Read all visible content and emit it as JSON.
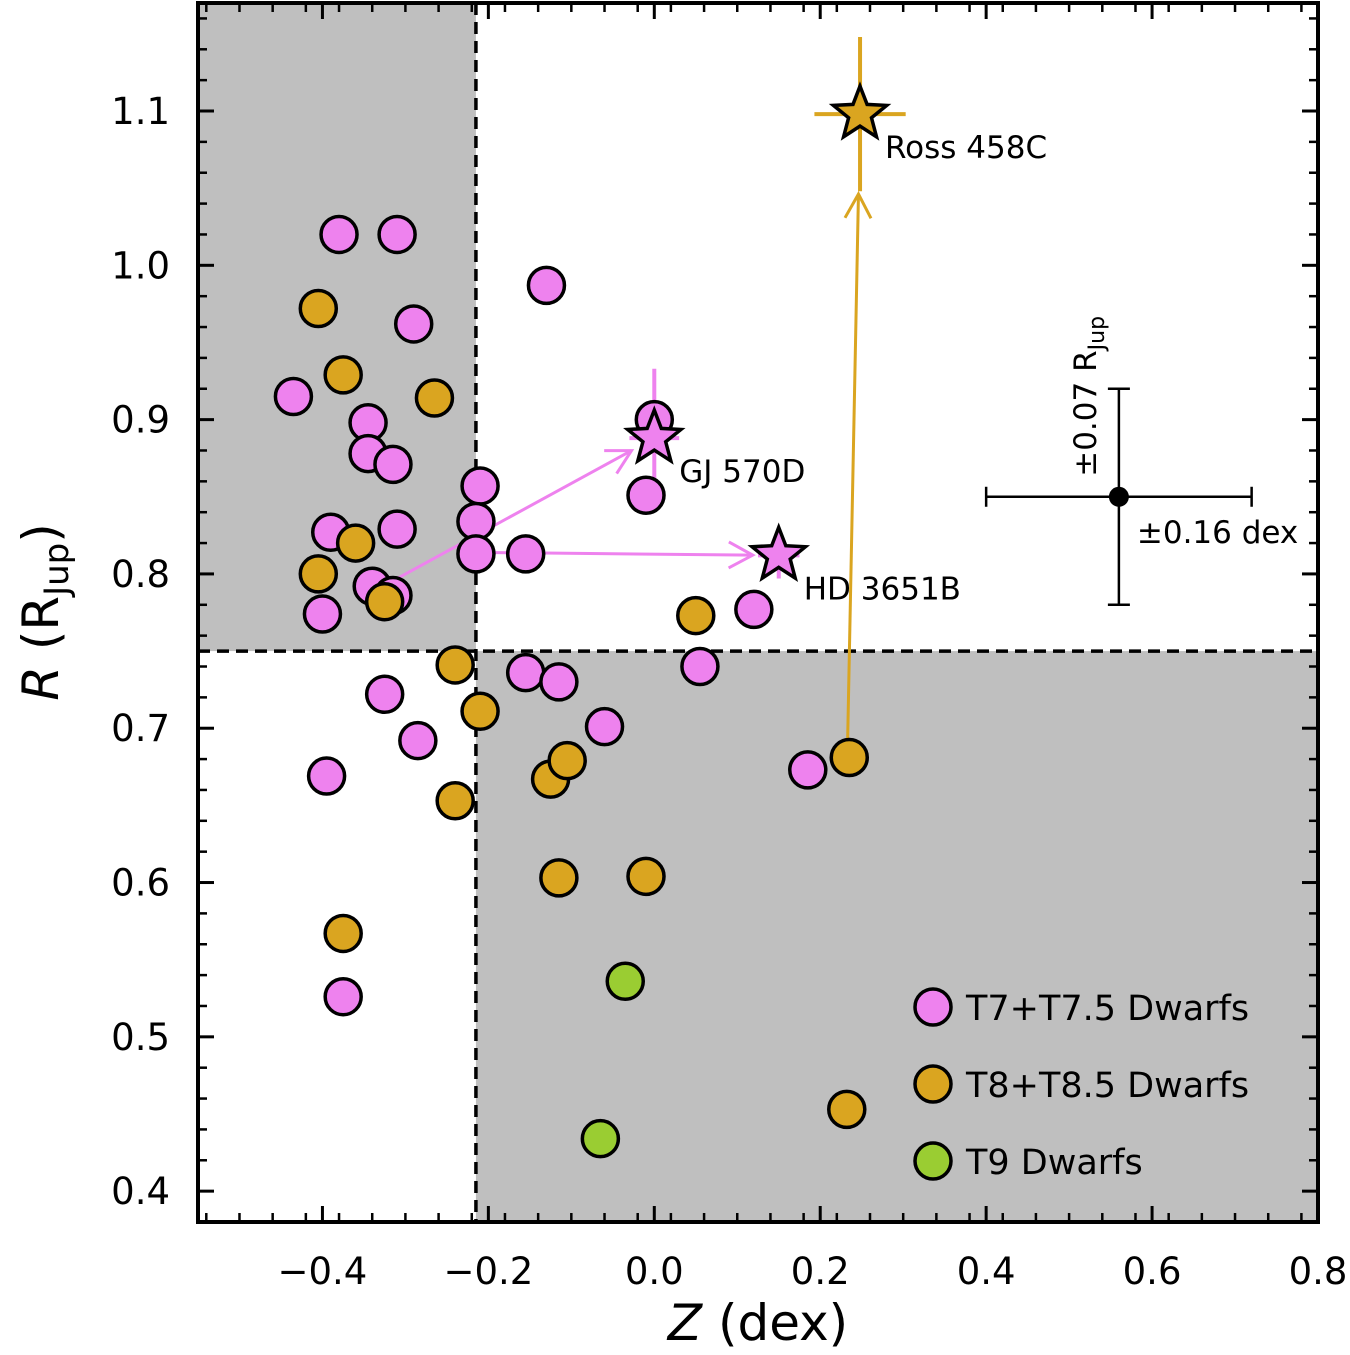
{
  "colors": {
    "t7": "#ee82ee",
    "t8": "#daa520",
    "t9": "#9acd32",
    "shade": "#bfbfbf"
  },
  "chart_data": {
    "type": "scatter",
    "xlabel": "Z (dex)",
    "ylabel": "R (RJup)",
    "xlabel_parts": {
      "var": "Z",
      "unit": "(dex)"
    },
    "ylabel_parts": {
      "var": "R",
      "open": "(R",
      "sub": "Jup",
      "close": ")"
    },
    "xlim": [
      -0.55,
      0.8
    ],
    "ylim": [
      0.38,
      1.17
    ],
    "xticks": [
      -0.4,
      -0.2,
      0.0,
      0.2,
      0.4,
      0.6,
      0.8
    ],
    "xtick_labels": [
      "−0.4",
      "−0.2",
      "0.0",
      "0.2",
      "0.4",
      "0.6",
      "0.8"
    ],
    "yticks": [
      0.4,
      0.5,
      0.6,
      0.7,
      0.8,
      0.9,
      1.0,
      1.1
    ],
    "ytick_labels": [
      "0.4",
      "0.5",
      "0.6",
      "0.7",
      "0.8",
      "0.9",
      "1.0",
      "1.1"
    ],
    "threshold_x": -0.215,
    "threshold_y": 0.75,
    "series": [
      {
        "name": "T7+T7.5 Dwarfs",
        "color_key": "t7",
        "points": [
          [
            -0.38,
            1.02
          ],
          [
            -0.31,
            1.02
          ],
          [
            -0.13,
            0.987
          ],
          [
            -0.29,
            0.962
          ],
          [
            -0.435,
            0.915
          ],
          [
            -0.345,
            0.898
          ],
          [
            -0.345,
            0.878
          ],
          [
            -0.315,
            0.871
          ],
          [
            -0.21,
            0.857
          ],
          [
            -0.215,
            0.834
          ],
          [
            -0.39,
            0.827
          ],
          [
            -0.31,
            0.829
          ],
          [
            -0.215,
            0.813
          ],
          [
            -0.155,
            0.813
          ],
          [
            -0.34,
            0.792
          ],
          [
            -0.315,
            0.786
          ],
          [
            -0.4,
            0.774
          ],
          [
            -0.325,
            0.722
          ],
          [
            -0.285,
            0.692
          ],
          [
            -0.155,
            0.736
          ],
          [
            -0.115,
            0.73
          ],
          [
            -0.06,
            0.701
          ],
          [
            -0.395,
            0.669
          ],
          [
            -0.375,
            0.526
          ],
          [
            0.0,
            0.9
          ],
          [
            -0.01,
            0.851
          ],
          [
            0.12,
            0.777
          ],
          [
            0.055,
            0.74
          ],
          [
            0.185,
            0.673
          ]
        ]
      },
      {
        "name": "T8+T8.5 Dwarfs",
        "color_key": "t8",
        "points": [
          [
            -0.405,
            0.972
          ],
          [
            -0.375,
            0.929
          ],
          [
            -0.265,
            0.914
          ],
          [
            -0.36,
            0.82
          ],
          [
            -0.405,
            0.8
          ],
          [
            -0.325,
            0.782
          ],
          [
            -0.24,
            0.741
          ],
          [
            -0.21,
            0.711
          ],
          [
            -0.125,
            0.667
          ],
          [
            -0.105,
            0.679
          ],
          [
            -0.24,
            0.653
          ],
          [
            -0.115,
            0.603
          ],
          [
            -0.01,
            0.604
          ],
          [
            -0.375,
            0.567
          ],
          [
            0.05,
            0.773
          ],
          [
            0.235,
            0.681
          ],
          [
            0.232,
            0.453
          ]
        ]
      },
      {
        "name": "T9 Dwarfs",
        "color_key": "t9",
        "points": [
          [
            -0.035,
            0.536
          ],
          [
            -0.065,
            0.434
          ]
        ]
      }
    ],
    "benchmarks": [
      {
        "name": "GJ 570D",
        "color_key": "t7",
        "x": 0.0,
        "y": 0.888,
        "xerr": 0.03,
        "yerr": 0.045,
        "arrow_from": [
          -0.31,
          0.797
        ]
      },
      {
        "name": "HD 3651B",
        "color_key": "t7",
        "x": 0.15,
        "y": 0.812,
        "xerr": 0.025,
        "yerr": 0.015,
        "arrow_from": [
          -0.22,
          0.814
        ]
      },
      {
        "name": "Ross 458C",
        "color_key": "t8",
        "x": 0.248,
        "y": 1.098,
        "xerr": 0.055,
        "yerr": 0.05,
        "arrow_from": [
          0.233,
          0.691
        ]
      }
    ],
    "typical_error": {
      "x": 0.56,
      "y": 0.85,
      "xerr": 0.16,
      "yerr": 0.07,
      "x_label": "±0.16 dex",
      "y_label_main": "±0.07 R",
      "y_label_sub": "Jup"
    },
    "legend": {
      "placement": "lower right"
    }
  }
}
